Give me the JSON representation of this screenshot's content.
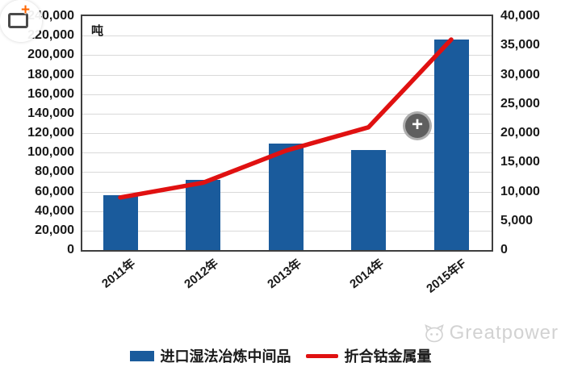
{
  "overlay": {
    "expand_plus_glyph": "+",
    "zoom_plus_glyph": "+"
  },
  "watermark": {
    "text": "Greatpower"
  },
  "colors": {
    "bar": "#1A5B9C",
    "line": "#E01111",
    "grid": "#D9D9D9",
    "watermark": "#D2D2D2",
    "accent_orange": "#FF6600"
  },
  "chart_data": {
    "type": "bar+line",
    "unit_label": "吨",
    "categories": [
      "2011年",
      "2012年",
      "2013年",
      "2014年",
      "2015年F"
    ],
    "series": [
      {
        "name": "进口湿法冶炼中间品",
        "type": "bar",
        "axis": "left",
        "color": "#1A5B9C",
        "values": [
          56000,
          72000,
          109000,
          103000,
          216000
        ]
      },
      {
        "name": "折合钴金属量",
        "type": "line",
        "axis": "right",
        "color": "#E01111",
        "values": [
          9000,
          11500,
          17000,
          21000,
          36000
        ]
      }
    ],
    "left_axis": {
      "min": 0,
      "max": 240000,
      "step": 20000,
      "tick_labels": [
        "240,000",
        "220,000",
        "200,000",
        "180,000",
        "160,000",
        "140,000",
        "120,000",
        "100,000",
        "80,000",
        "60,000",
        "40,000",
        "20,000",
        "0"
      ]
    },
    "right_axis": {
      "min": 0,
      "max": 40000,
      "step": 5000,
      "tick_labels": [
        "40,000",
        "35,000",
        "30,000",
        "25,000",
        "20,000",
        "15,000",
        "10,000",
        "5,000",
        "0"
      ]
    },
    "grid": "horizontal",
    "legend_position": "bottom"
  }
}
